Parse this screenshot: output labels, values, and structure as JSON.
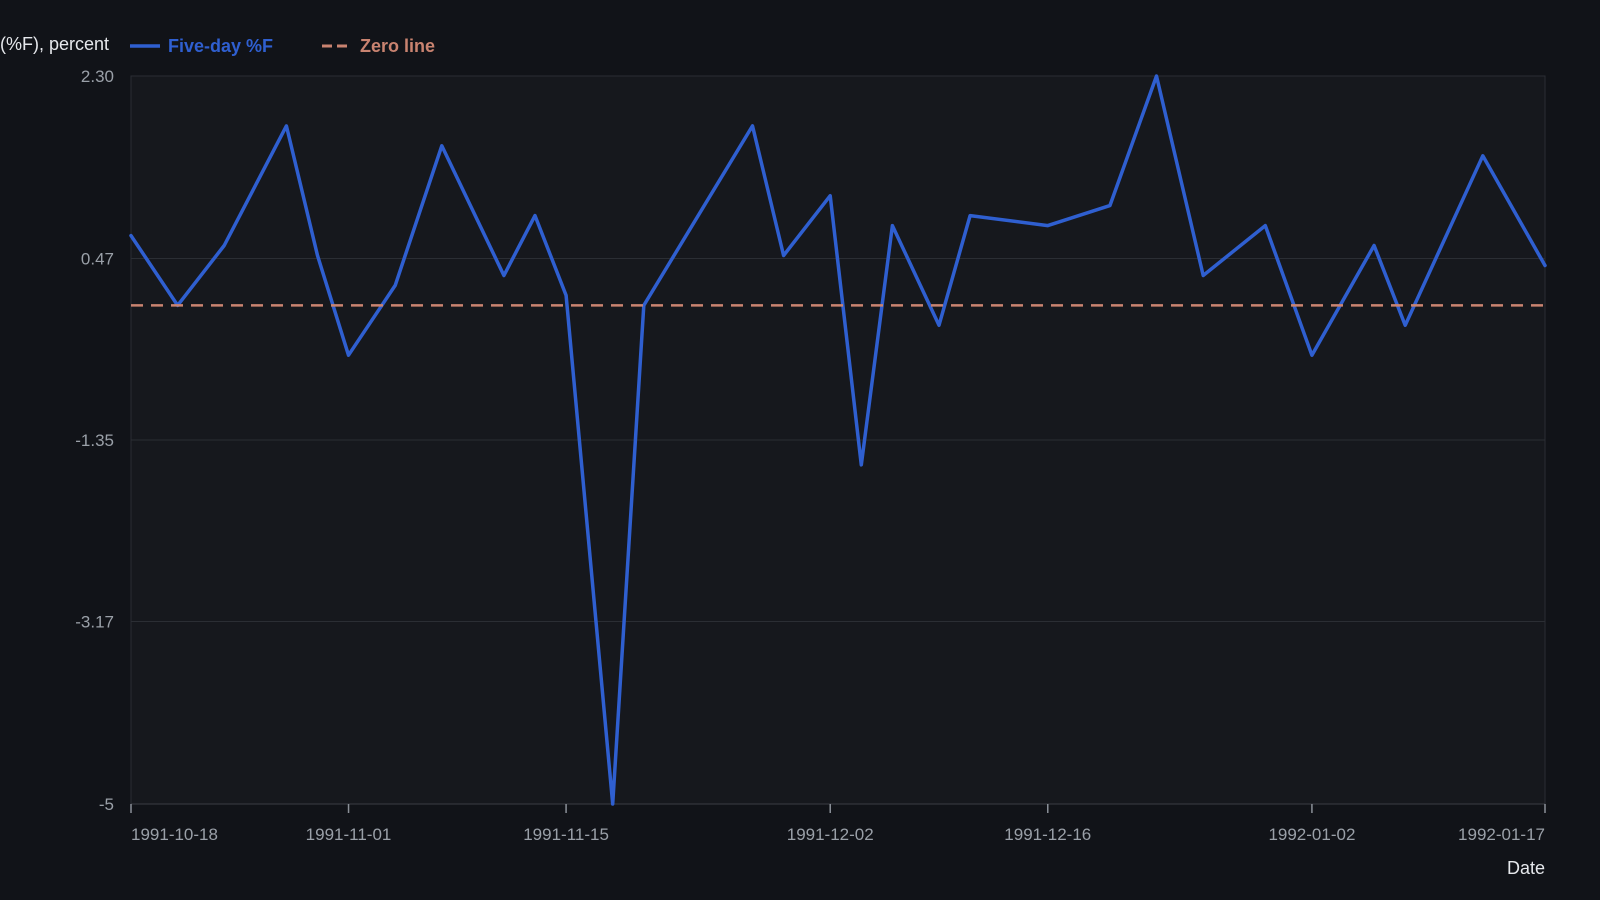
{
  "chart_data": {
    "type": "line",
    "ylabel": "(%F), percent",
    "xlabel": "Date",
    "ylim": [
      -5,
      2.3
    ],
    "y_ticks": [
      "2.30",
      "0.47",
      "-1.35",
      "-3.17",
      "-5"
    ],
    "x_ticks": [
      "1991-10-18",
      "1991-11-01",
      "1991-11-15",
      "1991-12-02",
      "1991-12-16",
      "1992-01-02",
      "1992-01-17"
    ],
    "grid": true,
    "legend_position": "top-left",
    "series": [
      {
        "name": "Five-day %F",
        "color": "#2f5fd0",
        "style": "solid",
        "points": [
          {
            "x": "1991-10-18",
            "y": 0.7
          },
          {
            "x": "1991-10-21",
            "y": 0.0
          },
          {
            "x": "1991-10-24",
            "y": 0.6
          },
          {
            "x": "1991-10-28",
            "y": 1.8
          },
          {
            "x": "1991-10-30",
            "y": 0.5
          },
          {
            "x": "1991-11-01",
            "y": -0.5
          },
          {
            "x": "1991-11-04",
            "y": 0.2
          },
          {
            "x": "1991-11-07",
            "y": 1.6
          },
          {
            "x": "1991-11-11",
            "y": 0.3
          },
          {
            "x": "1991-11-13",
            "y": 0.9
          },
          {
            "x": "1991-11-15",
            "y": 0.1
          },
          {
            "x": "1991-11-18",
            "y": -5.0
          },
          {
            "x": "1991-11-20",
            "y": 0.0
          },
          {
            "x": "1991-11-27",
            "y": 1.8
          },
          {
            "x": "1991-11-29",
            "y": 0.5
          },
          {
            "x": "1991-12-02",
            "y": 1.1
          },
          {
            "x": "1991-12-04",
            "y": -1.6
          },
          {
            "x": "1991-12-06",
            "y": 0.8
          },
          {
            "x": "1991-12-09",
            "y": -0.2
          },
          {
            "x": "1991-12-11",
            "y": 0.9
          },
          {
            "x": "1991-12-16",
            "y": 0.8
          },
          {
            "x": "1991-12-20",
            "y": 1.0
          },
          {
            "x": "1991-12-23",
            "y": 2.3
          },
          {
            "x": "1991-12-26",
            "y": 0.3
          },
          {
            "x": "1991-12-30",
            "y": 0.8
          },
          {
            "x": "1992-01-02",
            "y": -0.5
          },
          {
            "x": "1992-01-06",
            "y": 0.6
          },
          {
            "x": "1992-01-08",
            "y": -0.2
          },
          {
            "x": "1992-01-13",
            "y": 1.5
          },
          {
            "x": "1992-01-17",
            "y": 0.4
          }
        ]
      },
      {
        "name": "Zero line",
        "color": "#c98370",
        "style": "dashed",
        "points": [
          {
            "x": "1991-10-18",
            "y": 0
          },
          {
            "x": "1992-01-17",
            "y": 0
          }
        ]
      }
    ]
  }
}
